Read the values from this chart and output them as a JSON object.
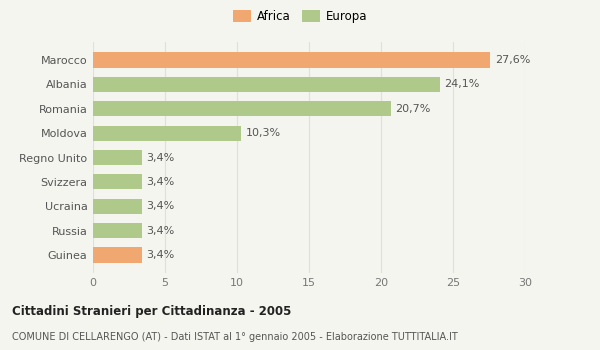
{
  "categories": [
    "Guinea",
    "Russia",
    "Ucraina",
    "Svizzera",
    "Regno Unito",
    "Moldova",
    "Romania",
    "Albania",
    "Marocco"
  ],
  "values": [
    3.4,
    3.4,
    3.4,
    3.4,
    3.4,
    10.3,
    20.7,
    24.1,
    27.6
  ],
  "labels": [
    "3,4%",
    "3,4%",
    "3,4%",
    "3,4%",
    "3,4%",
    "10,3%",
    "20,7%",
    "24,1%",
    "27,6%"
  ],
  "colors": [
    "#f0a870",
    "#aec98a",
    "#aec98a",
    "#aec98a",
    "#aec98a",
    "#aec98a",
    "#aec98a",
    "#aec98a",
    "#f0a870"
  ],
  "legend": [
    {
      "label": "Africa",
      "color": "#f0a870"
    },
    {
      "label": "Europa",
      "color": "#aec98a"
    }
  ],
  "xlim": [
    0,
    30
  ],
  "xticks": [
    0,
    5,
    10,
    15,
    20,
    25,
    30
  ],
  "title": "Cittadini Stranieri per Cittadinanza - 2005",
  "subtitle": "COMUNE DI CELLARENGO (AT) - Dati ISTAT al 1° gennaio 2005 - Elaborazione TUTTITALIA.IT",
  "background_color": "#f5f5f0",
  "grid_color": "#e0e0d8",
  "bar_height": 0.62
}
